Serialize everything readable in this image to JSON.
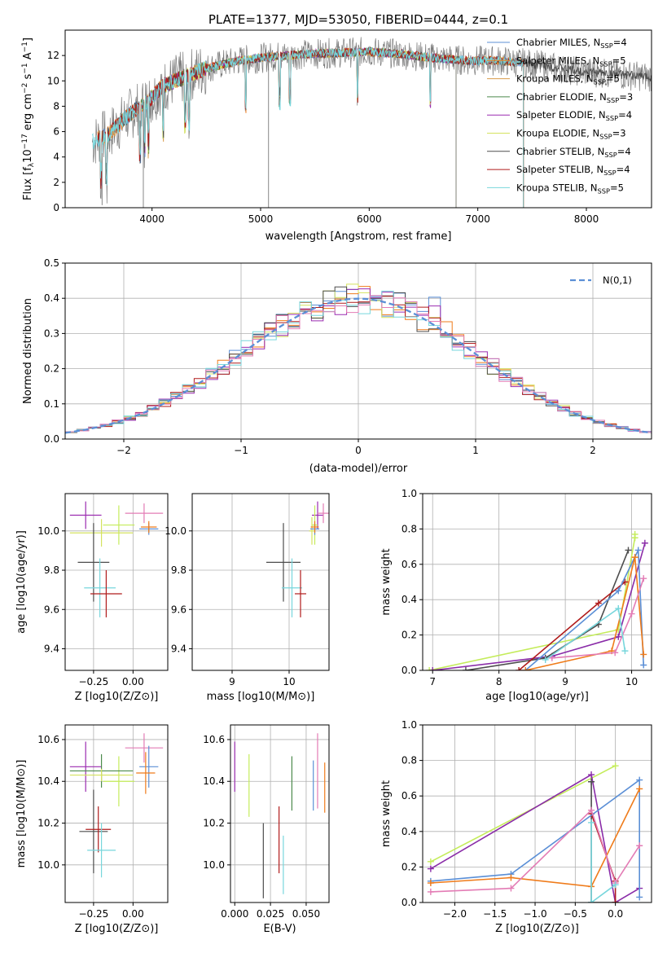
{
  "colors": {
    "Chabrier MILES": "#5b8fd6",
    "Salpeter MILES": "#ef7b1a",
    "Kroupa MILES": "#d89b4c",
    "Chabrier ELODIE": "#4c8a4c",
    "Salpeter ELODIE": "#9b2cb0",
    "Kroupa ELODIE": "#d4e25f",
    "Chabrier STELIB": "#4d4d4d",
    "Salpeter STELIB": "#b01c1c",
    "Kroupa STELIB": "#77d6dc",
    "pink": "#e37cb5",
    "violet": "#8a2ca8",
    "lime": "#c4ec5a",
    "gaussian": "#5b8fd6",
    "spectrum": "#7a7a7a"
  },
  "chart_data": [
    {
      "type": "line",
      "title": "PLATE=1377, MJD=53050, FIBERID=0444, z=0.1",
      "xlabel": "wavelength [Angstrom, rest frame]",
      "ylabel": "Flux [fλ10⁻¹⁷ erg cm⁻² s⁻¹ A⁻¹]",
      "xlim": [
        3200,
        8600
      ],
      "ylim": [
        0,
        14
      ],
      "xticks": [
        "4000",
        "5000",
        "6000",
        "7000",
        "8000"
      ],
      "yticks": [
        "0",
        "2",
        "4",
        "6",
        "8",
        "10",
        "12"
      ],
      "legend_position": "top-right",
      "series": [
        {
          "name": "Chabrier MILES, N_SSP=4",
          "label_main": "Chabrier MILES, N",
          "label_sub": "SSP",
          "label_tail": "=4",
          "x_range": [
            3500,
            7420
          ]
        },
        {
          "name": "Salpeter MILES, N_SSP=5",
          "label_main": "Salpeter MILES, N",
          "label_sub": "SSP",
          "label_tail": "=5",
          "x_range": [
            3500,
            7420
          ]
        },
        {
          "name": "Kroupa MILES, N_SSP=5",
          "label_main": "Kroupa MILES, N",
          "label_sub": "SSP",
          "label_tail": "=5",
          "x_range": [
            3500,
            7420
          ]
        },
        {
          "name": "Chabrier ELODIE, N_SSP=3",
          "label_main": "Chabrier ELODIE, N",
          "label_sub": "SSP",
          "label_tail": "=3",
          "x_range": [
            3900,
            6800
          ]
        },
        {
          "name": "Salpeter ELODIE, N_SSP=4",
          "label_main": "Salpeter ELODIE, N",
          "label_sub": "SSP",
          "label_tail": "=4",
          "x_range": [
            3900,
            6800
          ]
        },
        {
          "name": "Kroupa ELODIE, N_SSP=3",
          "label_main": "Kroupa ELODIE, N",
          "label_sub": "SSP",
          "label_tail": "=3",
          "x_range": [
            3900,
            6800
          ]
        },
        {
          "name": "Chabrier STELIB, N_SSP=4",
          "label_main": "Chabrier STELIB, N",
          "label_sub": "SSP",
          "label_tail": "=4",
          "x_range": [
            3500,
            8600
          ]
        },
        {
          "name": "Salpeter STELIB, N_SSP=4",
          "label_main": "Salpeter STELIB, N",
          "label_sub": "SSP",
          "label_tail": "=4",
          "x_range": [
            3500,
            7420
          ]
        },
        {
          "name": "Kroupa STELIB, N_SSP=5",
          "label_main": "Kroupa STELIB, N",
          "label_sub": "SSP",
          "label_tail": "=5",
          "x_range": [
            3450,
            7420
          ]
        }
      ],
      "spectrum_profile": {
        "x": [
          3450,
          3600,
          3800,
          3950,
          4100,
          4300,
          4500,
          4800,
          5100,
          5400,
          5700,
          6000,
          6300,
          6600,
          6900,
          7200,
          7420,
          7600,
          7900,
          8300,
          8600
        ],
        "y": [
          5.2,
          5.8,
          7.4,
          8.3,
          9.6,
          10.3,
          11.0,
          11.6,
          11.9,
          12.1,
          12.2,
          12.3,
          12.1,
          11.8,
          11.6,
          11.6,
          11.4,
          11.2,
          10.8,
          10.5,
          10.3
        ]
      }
    },
    {
      "type": "histogram",
      "xlabel": "(data-model)/error",
      "ylabel": "Normed distribution",
      "xlim": [
        -2.5,
        2.5
      ],
      "ylim": [
        0,
        0.5
      ],
      "xticks": [
        "−2",
        "−1",
        "0",
        "1",
        "2"
      ],
      "yticks": [
        "0.0",
        "0.1",
        "0.2",
        "0.3",
        "0.4",
        "0.5"
      ],
      "bin_width": 0.1,
      "legend": "N(0,1)",
      "gaussian": {
        "mean": 0,
        "sigma": 1,
        "name": "N(0,1)"
      }
    },
    {
      "type": "scatter",
      "xlabel": "Z [log10(Z/Z⊙)]",
      "ylabel": "age [log10(age/yr)]",
      "xlim": [
        -0.43,
        0.22
      ],
      "ylim": [
        9.29,
        10.19
      ],
      "xticks": [
        "−0.25",
        "0.00"
      ],
      "yticks": [
        "9.4",
        "9.6",
        "9.8",
        "10.0"
      ],
      "points": [
        {
          "series": "Salpeter ELODIE",
          "x": -0.3,
          "y": 10.08,
          "xerr": 0.1,
          "yerr": 0.07
        },
        {
          "series": "pink",
          "x": 0.07,
          "y": 10.09,
          "xerr": 0.12,
          "yerr": 0.05
        },
        {
          "series": "lime",
          "x": -0.09,
          "y": 10.03,
          "xerr": 0.1,
          "yerr": 0.1
        },
        {
          "series": "Kroupa ELODIE",
          "x": -0.2,
          "y": 9.99,
          "xerr": 0.2,
          "yerr": 0.07
        },
        {
          "series": "Chabrier MILES",
          "x": 0.1,
          "y": 10.01,
          "xerr": 0.06,
          "yerr": 0.03
        },
        {
          "series": "Salpeter MILES",
          "x": 0.1,
          "y": 10.02,
          "xerr": 0.05,
          "yerr": 0.03
        },
        {
          "series": "Chabrier STELIB",
          "x": -0.25,
          "y": 9.84,
          "xerr": 0.1,
          "yerr": 0.2
        },
        {
          "series": "Kroupa STELIB",
          "x": -0.21,
          "y": 9.71,
          "xerr": 0.1,
          "yerr": 0.15
        },
        {
          "series": "Salpeter STELIB",
          "x": -0.17,
          "y": 9.68,
          "xerr": 0.1,
          "yerr": 0.12
        }
      ]
    },
    {
      "type": "scatter",
      "xlabel": "mass [log10(M/M⊙)]",
      "ylabel": "",
      "xlim": [
        8.3,
        10.7
      ],
      "ylim": [
        9.29,
        10.19
      ],
      "xticks": [
        "9",
        "10"
      ],
      "yticks": [
        "9.4",
        "9.6",
        "9.8",
        "10.0"
      ],
      "points": [
        {
          "series": "Salpeter ELODIE",
          "x": 10.5,
          "y": 10.08,
          "xerr": 0.1,
          "yerr": 0.07
        },
        {
          "series": "pink",
          "x": 10.6,
          "y": 10.09,
          "xerr": 0.1,
          "yerr": 0.05
        },
        {
          "series": "lime",
          "x": 10.45,
          "y": 10.03,
          "xerr": 0.05,
          "yerr": 0.1
        },
        {
          "series": "Kroupa ELODIE",
          "x": 10.4,
          "y": 10.0,
          "xerr": 0.05,
          "yerr": 0.07
        },
        {
          "series": "Chabrier MILES",
          "x": 10.45,
          "y": 10.01,
          "xerr": 0.08,
          "yerr": 0.03
        },
        {
          "series": "Salpeter MILES",
          "x": 10.45,
          "y": 10.02,
          "xerr": 0.07,
          "yerr": 0.03
        },
        {
          "series": "Chabrier STELIB",
          "x": 9.9,
          "y": 9.84,
          "xerr": 0.3,
          "yerr": 0.2
        },
        {
          "series": "Kroupa STELIB",
          "x": 10.05,
          "y": 9.71,
          "xerr": 0.18,
          "yerr": 0.15
        },
        {
          "series": "Salpeter STELIB",
          "x": 10.2,
          "y": 9.68,
          "xerr": 0.1,
          "yerr": 0.12
        }
      ]
    },
    {
      "type": "line",
      "xlabel": "age [log10(age/yr)]",
      "ylabel": "mass weight",
      "xlim": [
        6.85,
        10.3
      ],
      "ylim": [
        0,
        1
      ],
      "xticks": [
        "7",
        "8",
        "9",
        "10"
      ],
      "yticks": [
        "0.0",
        "0.2",
        "0.4",
        "0.6",
        "0.8",
        "1.0"
      ],
      "series": [
        {
          "color": "lime",
          "x": [
            6.95,
            9.8,
            10.05,
            10.05
          ],
          "y": [
            0.0,
            0.23,
            0.75,
            0.77
          ]
        },
        {
          "color": "violet",
          "x": [
            7.0,
            8.8,
            9.8,
            10.2
          ],
          "y": [
            0.0,
            0.08,
            0.19,
            0.72
          ]
        },
        {
          "color": "Chabrier STELIB",
          "x": [
            7.5,
            8.7,
            9.5,
            9.95
          ],
          "y": [
            0.0,
            0.07,
            0.26,
            0.68
          ]
        },
        {
          "color": "Salpeter STELIB",
          "x": [
            8.3,
            9.5,
            9.9
          ],
          "y": [
            0.0,
            0.38,
            0.5
          ]
        },
        {
          "color": "Chabrier MILES",
          "x": [
            8.4,
            9.8,
            10.1,
            10.18
          ],
          "y": [
            0.0,
            0.45,
            0.68,
            0.03
          ]
        },
        {
          "color": "Salpeter MILES",
          "x": [
            8.4,
            9.7,
            10.05,
            10.18
          ],
          "y": [
            0.0,
            0.11,
            0.64,
            0.09
          ]
        },
        {
          "color": "pink",
          "x": [
            8.8,
            9.75,
            10.0,
            10.18
          ],
          "y": [
            0.07,
            0.1,
            0.32,
            0.52
          ]
        },
        {
          "color": "Kroupa STELIB",
          "x": [
            8.7,
            9.8,
            9.9
          ],
          "y": [
            0.06,
            0.35,
            0.11
          ]
        }
      ]
    },
    {
      "type": "scatter",
      "xlabel": "Z [log10(Z/Z⊙)]",
      "ylabel": "mass [log10(M/M⊙)]",
      "xlim": [
        -0.43,
        0.22
      ],
      "ylim": [
        9.82,
        10.67
      ],
      "xticks": [
        "−0.25",
        "0.00"
      ],
      "yticks": [
        "10.0",
        "10.2",
        "10.4",
        "10.6"
      ],
      "points": [
        {
          "series": "Salpeter ELODIE",
          "x": -0.3,
          "y": 10.47,
          "xerr": 0.1,
          "yerr": 0.12
        },
        {
          "series": "pink",
          "x": 0.07,
          "y": 10.56,
          "xerr": 0.12,
          "yerr": 0.07
        },
        {
          "series": "lime",
          "x": -0.09,
          "y": 10.4,
          "xerr": 0.1,
          "yerr": 0.12
        },
        {
          "series": "Chabrier ELODIE",
          "x": -0.2,
          "y": 10.45,
          "xerr": 0.2,
          "yerr": 0.08
        },
        {
          "series": "Kroupa ELODIE",
          "x": -0.2,
          "y": 10.43,
          "xerr": 0.2,
          "yerr": 0.03
        },
        {
          "series": "Chabrier MILES",
          "x": 0.1,
          "y": 10.47,
          "xerr": 0.06,
          "yerr": 0.1
        },
        {
          "series": "Salpeter MILES",
          "x": 0.08,
          "y": 10.44,
          "xerr": 0.06,
          "yerr": 0.1
        },
        {
          "series": "Chabrier STELIB",
          "x": -0.25,
          "y": 10.16,
          "xerr": 0.09,
          "yerr": 0.2
        },
        {
          "series": "Salpeter STELIB",
          "x": -0.22,
          "y": 10.17,
          "xerr": 0.08,
          "yerr": 0.11
        },
        {
          "series": "Kroupa STELIB",
          "x": -0.2,
          "y": 10.07,
          "xerr": 0.09,
          "yerr": 0.13
        }
      ]
    },
    {
      "type": "scatter",
      "xlabel": "E(B-V)",
      "ylabel": "",
      "xlim": [
        -0.003,
        0.066
      ],
      "ylim": [
        9.82,
        10.67
      ],
      "xticks": [
        "0.000",
        "0.025",
        "0.050"
      ],
      "yticks": [
        "10.0",
        "10.2",
        "10.4",
        "10.6"
      ],
      "points": [
        {
          "series": "Salpeter ELODIE",
          "x": 0.0,
          "y": 10.47,
          "xerr": 0,
          "yerr": 0.12
        },
        {
          "series": "lime",
          "x": 0.01,
          "y": 10.38,
          "xerr": 0,
          "yerr": 0.15
        },
        {
          "series": "Chabrier ELODIE",
          "x": 0.04,
          "y": 10.39,
          "xerr": 0,
          "yerr": 0.13
        },
        {
          "series": "Chabrier MILES",
          "x": 0.055,
          "y": 10.38,
          "xerr": 0,
          "yerr": 0.12
        },
        {
          "series": "pink",
          "x": 0.058,
          "y": 10.45,
          "xerr": 0,
          "yerr": 0.18
        },
        {
          "series": "Salpeter MILES",
          "x": 0.063,
          "y": 10.37,
          "xerr": 0,
          "yerr": 0.12
        },
        {
          "series": "Chabrier STELIB",
          "x": 0.02,
          "y": 10.02,
          "xerr": 0,
          "yerr": 0.18
        },
        {
          "series": "Salpeter STELIB",
          "x": 0.031,
          "y": 10.12,
          "xerr": 0,
          "yerr": 0.16
        },
        {
          "series": "Kroupa STELIB",
          "x": 0.034,
          "y": 10.0,
          "xerr": 0,
          "yerr": 0.14
        }
      ]
    },
    {
      "type": "line",
      "xlabel": "Z [log10(Z/Z⊙)]",
      "ylabel": "mass weight",
      "xlim": [
        -2.4,
        0.45
      ],
      "ylim": [
        0,
        1
      ],
      "xticks": [
        "−2.0",
        "−1.5",
        "−1.0",
        "−0.5",
        "0.0"
      ],
      "yticks": [
        "0.0",
        "0.2",
        "0.4",
        "0.6",
        "0.8",
        "1.0"
      ],
      "series": [
        {
          "color": "lime",
          "x": [
            -2.3,
            0.0
          ],
          "y": [
            0.23,
            0.77
          ]
        },
        {
          "color": "violet",
          "x": [
            -2.3,
            -0.3,
            0.0,
            0.3
          ],
          "y": [
            0.19,
            0.72,
            0.0,
            0.08
          ]
        },
        {
          "color": "Chabrier STELIB",
          "x": [
            -0.3,
            -0.3,
            0.0
          ],
          "y": [
            0.68,
            0.0,
            0.0
          ]
        },
        {
          "color": "Salpeter STELIB",
          "x": [
            -0.3,
            0.0,
            0.0
          ],
          "y": [
            0.5,
            0.12,
            0.0
          ]
        },
        {
          "color": "Chabrier MILES",
          "x": [
            -2.3,
            -1.3,
            0.3,
            0.3
          ],
          "y": [
            0.12,
            0.16,
            0.69,
            0.03
          ]
        },
        {
          "color": "Salpeter MILES",
          "x": [
            -2.3,
            -1.3,
            -0.3,
            0.3
          ],
          "y": [
            0.11,
            0.14,
            0.09,
            0.64
          ]
        },
        {
          "color": "pink",
          "x": [
            -2.3,
            -1.3,
            -0.3,
            0.0,
            0.3
          ],
          "y": [
            0.06,
            0.08,
            0.52,
            0.11,
            0.32
          ]
        },
        {
          "color": "Kroupa STELIB",
          "x": [
            -0.3,
            -0.3,
            0.0
          ],
          "y": [
            0.45,
            0.0,
            0.1
          ]
        }
      ]
    }
  ]
}
